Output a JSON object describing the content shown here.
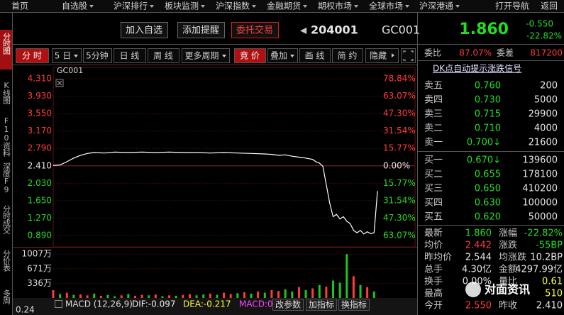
{
  "menu": [
    "首页",
    "自选股",
    "沪深排行",
    "板块监测",
    "沪深指数",
    "金融期货",
    "期权市场",
    "全球市场",
    "沪深港通",
    "打开导航",
    "返回"
  ],
  "sidebar": [
    "分时图",
    "K线图",
    "F10资料",
    "深度F9",
    "分时成交",
    "分价表",
    "多周"
  ],
  "header": {
    "buttons": [
      "加入自选",
      "添加提醒",
      "委托交易"
    ],
    "code": "204001",
    "name": "GC001",
    "price": "1.860",
    "change": "-0.550",
    "change_pct": "-22.82%"
  },
  "toolbar": {
    "left": [
      "分 时",
      "5 日",
      "5分钟",
      "日 线",
      "周 线",
      "更多周期"
    ],
    "right": [
      "竞 价",
      "叠加",
      "画 线",
      "简 约",
      "隐藏"
    ]
  },
  "price_chart": {
    "type": "line",
    "title": "GC001",
    "color": "#ffffff",
    "x": [
      0,
      2,
      4,
      6,
      8,
      10,
      12,
      15,
      18,
      22,
      26,
      30,
      34,
      38,
      42,
      46,
      50,
      54,
      58,
      62,
      64,
      66,
      68,
      70,
      72,
      74,
      76,
      77,
      78,
      79,
      80,
      81,
      82,
      83,
      84,
      85,
      86,
      87,
      88,
      89,
      90,
      91,
      92,
      93,
      94,
      95
    ],
    "values": [
      2.42,
      2.43,
      2.5,
      2.58,
      2.64,
      2.68,
      2.7,
      2.69,
      2.71,
      2.7,
      2.71,
      2.7,
      2.71,
      2.7,
      2.7,
      2.69,
      2.7,
      2.69,
      2.68,
      2.67,
      2.66,
      2.64,
      2.65,
      2.62,
      2.6,
      2.58,
      2.55,
      2.5,
      2.47,
      2.4,
      2.0,
      1.6,
      1.3,
      1.35,
      1.25,
      1.3,
      1.2,
      1.15,
      1.0,
      0.95,
      1.0,
      0.92,
      0.97,
      0.93,
      0.95,
      1.86
    ],
    "xlim": [
      0,
      106
    ],
    "ylim": [
      0.64,
      4.56
    ],
    "yticks": [
      {
        "value": 4.31,
        "label": "4.310"
      },
      {
        "value": 3.93,
        "label": "3.930"
      },
      {
        "value": 3.55,
        "label": "3.550"
      },
      {
        "value": 3.17,
        "label": "3.170"
      },
      {
        "value": 2.79,
        "label": "2.790"
      },
      {
        "value": 2.41,
        "label": "2.410"
      },
      {
        "value": 2.03,
        "label": "2.030"
      },
      {
        "value": 1.65,
        "label": "1.650"
      },
      {
        "value": 1.27,
        "label": "1.270"
      },
      {
        "value": 0.89,
        "label": "0.890"
      }
    ],
    "y2lim": [
      -73.44,
      89.21
    ],
    "y2ticks": [
      {
        "value": 78.84,
        "label": "78.84%"
      },
      {
        "value": 63.07,
        "label": "63.07%"
      },
      {
        "value": 47.3,
        "label": "47.30%"
      },
      {
        "value": 31.54,
        "label": "31.54%"
      },
      {
        "value": 15.77,
        "label": "15.77%"
      },
      {
        "value": 0,
        "label": "0.00%"
      },
      {
        "value": -15.77,
        "label": "15.77%"
      },
      {
        "value": -31.54,
        "label": "31.54%"
      },
      {
        "value": -47.3,
        "label": "47.30%"
      },
      {
        "value": -63.07,
        "label": "63.07%"
      }
    ],
    "grid": true
  },
  "volume_chart": {
    "type": "bar",
    "x": [
      0,
      2,
      4,
      6,
      8,
      10,
      12,
      14,
      16,
      18,
      20,
      22,
      24,
      26,
      28,
      30,
      32,
      34,
      36,
      38,
      40,
      42,
      44,
      46,
      48,
      50,
      52,
      54,
      56,
      58,
      60,
      62,
      64,
      66,
      68,
      70,
      72,
      74,
      76,
      78,
      80,
      82,
      84,
      86,
      88,
      90,
      92,
      94
    ],
    "values": [
      180,
      90,
      120,
      70,
      80,
      60,
      100,
      50,
      70,
      40,
      60,
      90,
      50,
      70,
      60,
      80,
      40,
      60,
      50,
      70,
      90,
      60,
      80,
      100,
      70,
      120,
      90,
      110,
      130,
      100,
      150,
      120,
      180,
      160,
      200,
      150,
      250,
      180,
      220,
      300,
      260,
      400,
      350,
      1007,
      500,
      300,
      250,
      150
    ],
    "colors": [
      "#ff3b3b",
      "#1fc41f",
      "#ff3b3b",
      "#1fc41f",
      "#ff3b3b",
      "#ff3b3b",
      "#1fc41f",
      "#ff3b3b",
      "#1fc41f",
      "#1fc41f",
      "#ff3b3b",
      "#1fc41f",
      "#ff3b3b",
      "#ff3b3b",
      "#1fc41f",
      "#ff3b3b",
      "#1fc41f",
      "#ff3b3b",
      "#1fc41f",
      "#ff3b3b",
      "#ff3b3b",
      "#1fc41f",
      "#1fc41f",
      "#ff3b3b",
      "#1fc41f",
      "#ff3b3b",
      "#ff3b3b",
      "#1fc41f",
      "#ff3b3b",
      "#1fc41f",
      "#ff3b3b",
      "#1fc41f",
      "#ff3b3b",
      "#ff3b3b",
      "#1fc41f",
      "#1fc41f",
      "#ff3b3b",
      "#1fc41f",
      "#ff3b3b",
      "#1fc41f",
      "#ff3b3b",
      "#1fc41f",
      "#1fc41f",
      "#1fc41f",
      "#ff3b3b",
      "#1fc41f",
      "#ff3b3b",
      "#1fc41f"
    ],
    "xlim": [
      0,
      106
    ],
    "ylim": [
      0,
      1108
    ],
    "yticks": [
      {
        "value": 1007,
        "label": "1007万"
      },
      {
        "value": 671,
        "label": "671万"
      },
      {
        "value": 336,
        "label": "336万"
      }
    ]
  },
  "indicator_bar": {
    "axis_label": "0.24",
    "labels": [
      "MACD (12,26,9)",
      "DIF:-0.097",
      "DEA:-0.217",
      "MACD:0"
    ],
    "buttons": [
      "改参数",
      "加指标",
      "换指标"
    ]
  },
  "order_book": {
    "ratio": [
      "委比",
      "87.07%",
      "委差",
      "817200"
    ],
    "signal": "DK点自动提示涨跌信号",
    "asks": [
      [
        "卖五",
        "0.760",
        "200"
      ],
      [
        "卖四",
        "0.730",
        "5000"
      ],
      [
        "卖三",
        "0.715",
        "29900"
      ],
      [
        "卖二",
        "0.710",
        "4000"
      ],
      [
        "卖一",
        "0.700↓",
        "21600"
      ]
    ],
    "bids": [
      [
        "买一",
        "0.670↓",
        "139600"
      ],
      [
        "买二",
        "0.655",
        "178100"
      ],
      [
        "买三",
        "0.650",
        "410200"
      ],
      [
        "买四",
        "0.630",
        "100000"
      ],
      [
        "买五",
        "0.620",
        "50000"
      ]
    ],
    "stats": [
      [
        "最新",
        "1.860",
        "涨幅",
        "-22.82%"
      ],
      [
        "均价",
        "2.442",
        "涨跌",
        "-55BP"
      ],
      [
        "昨均价",
        "2.544",
        "均涨跌",
        "10.2BP"
      ],
      [
        "总手",
        "4.30亿",
        "金额",
        "4297.99亿"
      ],
      [
        "换手",
        "0.00%",
        "量比",
        "0.61"
      ],
      [
        "最高",
        "",
        "",
        "510"
      ],
      [
        "今开",
        "2.550",
        "昨收",
        "2.410"
      ]
    ]
  },
  "watermark": "对面资讯"
}
